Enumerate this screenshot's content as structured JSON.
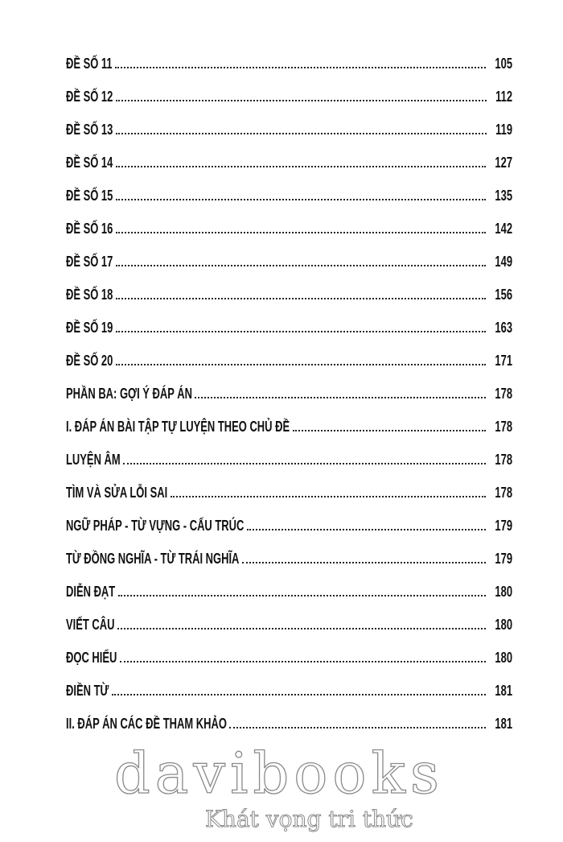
{
  "toc": [
    {
      "label": "ĐỀ SỐ 11",
      "page": "105"
    },
    {
      "label": "ĐỀ SỐ 12",
      "page": "112"
    },
    {
      "label": "ĐỀ SỐ 13",
      "page": "119"
    },
    {
      "label": "ĐỀ SỐ 14",
      "page": "127"
    },
    {
      "label": "ĐỀ SỐ 15",
      "page": "135"
    },
    {
      "label": "ĐỀ SỐ 16",
      "page": "142"
    },
    {
      "label": "ĐỀ SỐ 17",
      "page": "149"
    },
    {
      "label": "ĐỀ SỐ 18",
      "page": "156"
    },
    {
      "label": "ĐỀ SỐ 19",
      "page": "163"
    },
    {
      "label": "ĐỀ SỐ 20",
      "page": "171"
    },
    {
      "label": "PHẦN BA: GỢI Ý ĐÁP ÁN",
      "page": "178"
    },
    {
      "label": "I. ĐÁP ÁN BÀI TẬP TỰ LUYỆN THEO CHỦ ĐỀ",
      "page": "178"
    },
    {
      "label": "LUYỆN ÂM",
      "page": "178"
    },
    {
      "label": "TÌM VÀ SỬA LỖI SAI",
      "page": "178"
    },
    {
      "label": "NGỮ PHÁP - TỪ VỰNG - CẤU TRÚC",
      "page": "179"
    },
    {
      "label": "TỪ ĐỒNG NGHĨA - TỪ TRÁI NGHĨA",
      "page": "179"
    },
    {
      "label": "DIỄN ĐẠT",
      "page": "180"
    },
    {
      "label": "VIẾT CÂU",
      "page": "180"
    },
    {
      "label": "ĐỌC HIỂU",
      "page": "180"
    },
    {
      "label": "ĐIỀN TỪ",
      "page": "181"
    },
    {
      "label": "II. ĐÁP ÁN CÁC ĐỀ THAM KHẢO",
      "page": "181"
    }
  ],
  "watermark": {
    "brand": "davibooks",
    "slogan": "Khát vọng tri thức"
  }
}
